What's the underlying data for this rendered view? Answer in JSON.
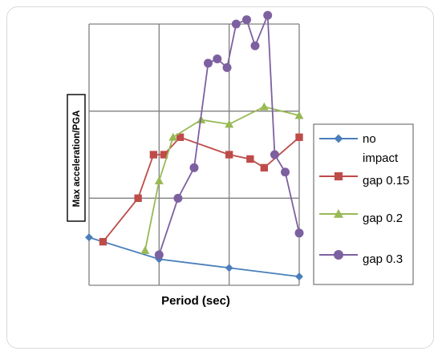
{
  "chart_data": {
    "type": "line",
    "title": "",
    "xlabel": "Period (sec)",
    "ylabel": "Max acceleration/PGA",
    "xlim": [
      0,
      3
    ],
    "ylim": [
      0,
      3
    ],
    "grid": true,
    "legend_position": "right",
    "series": [
      {
        "name": "no impact",
        "color": "#4a7ebb",
        "marker": "diamond",
        "x": [
          0,
          1,
          2,
          3
        ],
        "y": [
          0.55,
          0.3,
          0.2,
          0.1
        ]
      },
      {
        "name": "gap 0.15",
        "color": "#be4b48",
        "marker": "square",
        "x": [
          0.2,
          0.7,
          0.92,
          1.07,
          1.3,
          2.0,
          2.3,
          2.5,
          3.0
        ],
        "y": [
          0.5,
          1.0,
          1.5,
          1.5,
          1.7,
          1.5,
          1.45,
          1.35,
          1.7
        ]
      },
      {
        "name": "gap 0.2",
        "color": "#98b954",
        "marker": "triangle",
        "x": [
          0.8,
          1.0,
          1.2,
          1.6,
          2.0,
          2.5,
          3.0
        ],
        "y": [
          0.4,
          1.2,
          1.7,
          1.9,
          1.85,
          2.05,
          1.95
        ]
      },
      {
        "name": "gap 0.3",
        "color": "#7d60a0",
        "marker": "circle",
        "x": [
          1.0,
          1.27,
          1.5,
          1.7,
          1.83,
          1.97,
          2.1,
          2.25,
          2.37,
          2.55,
          2.65,
          2.8,
          3.0
        ],
        "y": [
          0.35,
          1.0,
          1.35,
          2.55,
          2.6,
          2.5,
          3.0,
          3.05,
          2.75,
          3.1,
          1.5,
          1.3,
          0.6
        ]
      }
    ]
  }
}
